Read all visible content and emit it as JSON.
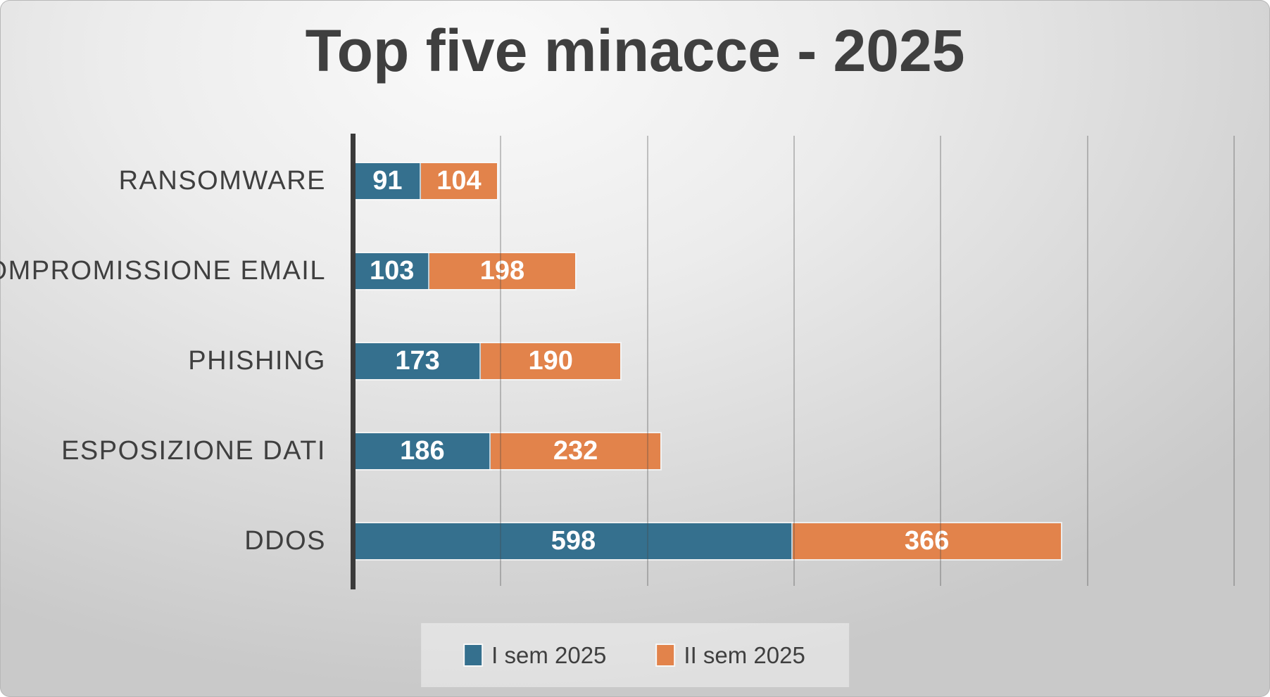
{
  "chart_data": {
    "type": "bar",
    "orientation": "horizontal",
    "stacked": true,
    "title": "Top five minacce - 2025",
    "categories": [
      "RANSOMWARE",
      "COMPROMISSIONE EMAIL",
      "PHISHING",
      "ESPOSIZIONE DATI",
      "DDOS"
    ],
    "series": [
      {
        "name": "I sem 2025",
        "color": "#35708E",
        "values": [
          91,
          103,
          173,
          186,
          598
        ]
      },
      {
        "name": "II sem 2025",
        "color": "#E2834B",
        "values": [
          104,
          198,
          190,
          232,
          366
        ]
      }
    ],
    "xlabel": "",
    "ylabel": "",
    "xlim": [
      0,
      1200
    ],
    "gridline_step": 200,
    "grid": true,
    "axis_tick_labels_visible": false,
    "legend_position": "bottom-center",
    "value_labels": "inside-center"
  },
  "colors": {
    "series_1": "#35708E",
    "series_2": "#E2834B",
    "title_text": "#3F3F3F",
    "category_text": "#3F3F3F",
    "value_text": "#FFFFFF",
    "axis_line": "#3A3A3A"
  }
}
